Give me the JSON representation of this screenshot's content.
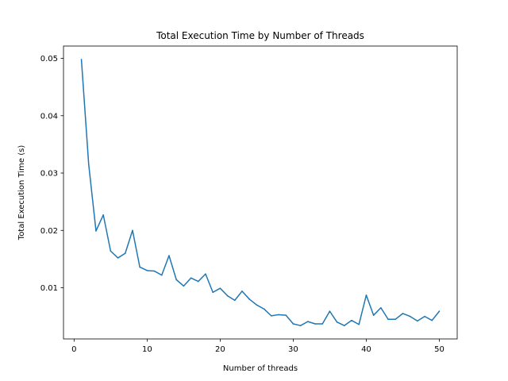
{
  "chart_data": {
    "type": "line",
    "title": "Total Execution Time by Number of Threads",
    "xlabel": "Number of threads",
    "ylabel": "Total Execution Time (s)",
    "xlim": [
      -1.45,
      52.45
    ],
    "ylim": [
      0.00107,
      0.05215
    ],
    "xticks": [
      0,
      10,
      20,
      30,
      40,
      50
    ],
    "xtick_labels": [
      "0",
      "10",
      "20",
      "30",
      "40",
      "50"
    ],
    "yticks": [
      0.01,
      0.02,
      0.03,
      0.04,
      0.05
    ],
    "ytick_labels": [
      "0.01",
      "0.02",
      "0.03",
      "0.04",
      "0.05"
    ],
    "grid": false,
    "color": "#1f77b4",
    "series": [
      {
        "x": [
          1,
          2,
          3,
          4,
          5,
          6,
          7,
          8,
          9,
          10,
          11,
          12,
          13,
          14,
          15,
          16,
          17,
          18,
          19,
          20,
          21,
          22,
          23,
          24,
          25,
          26,
          27,
          28,
          29,
          30,
          31,
          32,
          33,
          34,
          35,
          36,
          37,
          38,
          39,
          40,
          41,
          42,
          43,
          44,
          45,
          46,
          47,
          48,
          49,
          50
        ],
        "values": [
          0.0498,
          0.0315,
          0.0199,
          0.0227,
          0.0164,
          0.0152,
          0.016,
          0.02,
          0.0136,
          0.013,
          0.0129,
          0.0122,
          0.0156,
          0.0114,
          0.0103,
          0.0117,
          0.0111,
          0.0124,
          0.0092,
          0.0099,
          0.0086,
          0.0078,
          0.0094,
          0.008,
          0.007,
          0.0063,
          0.0051,
          0.0053,
          0.0052,
          0.0037,
          0.0034,
          0.0041,
          0.0037,
          0.0037,
          0.0059,
          0.004,
          0.0034,
          0.0043,
          0.0036,
          0.0087,
          0.0052,
          0.0065,
          0.0045,
          0.0045,
          0.0055,
          0.005,
          0.0042,
          0.005,
          0.0043,
          0.0059
        ]
      }
    ]
  }
}
